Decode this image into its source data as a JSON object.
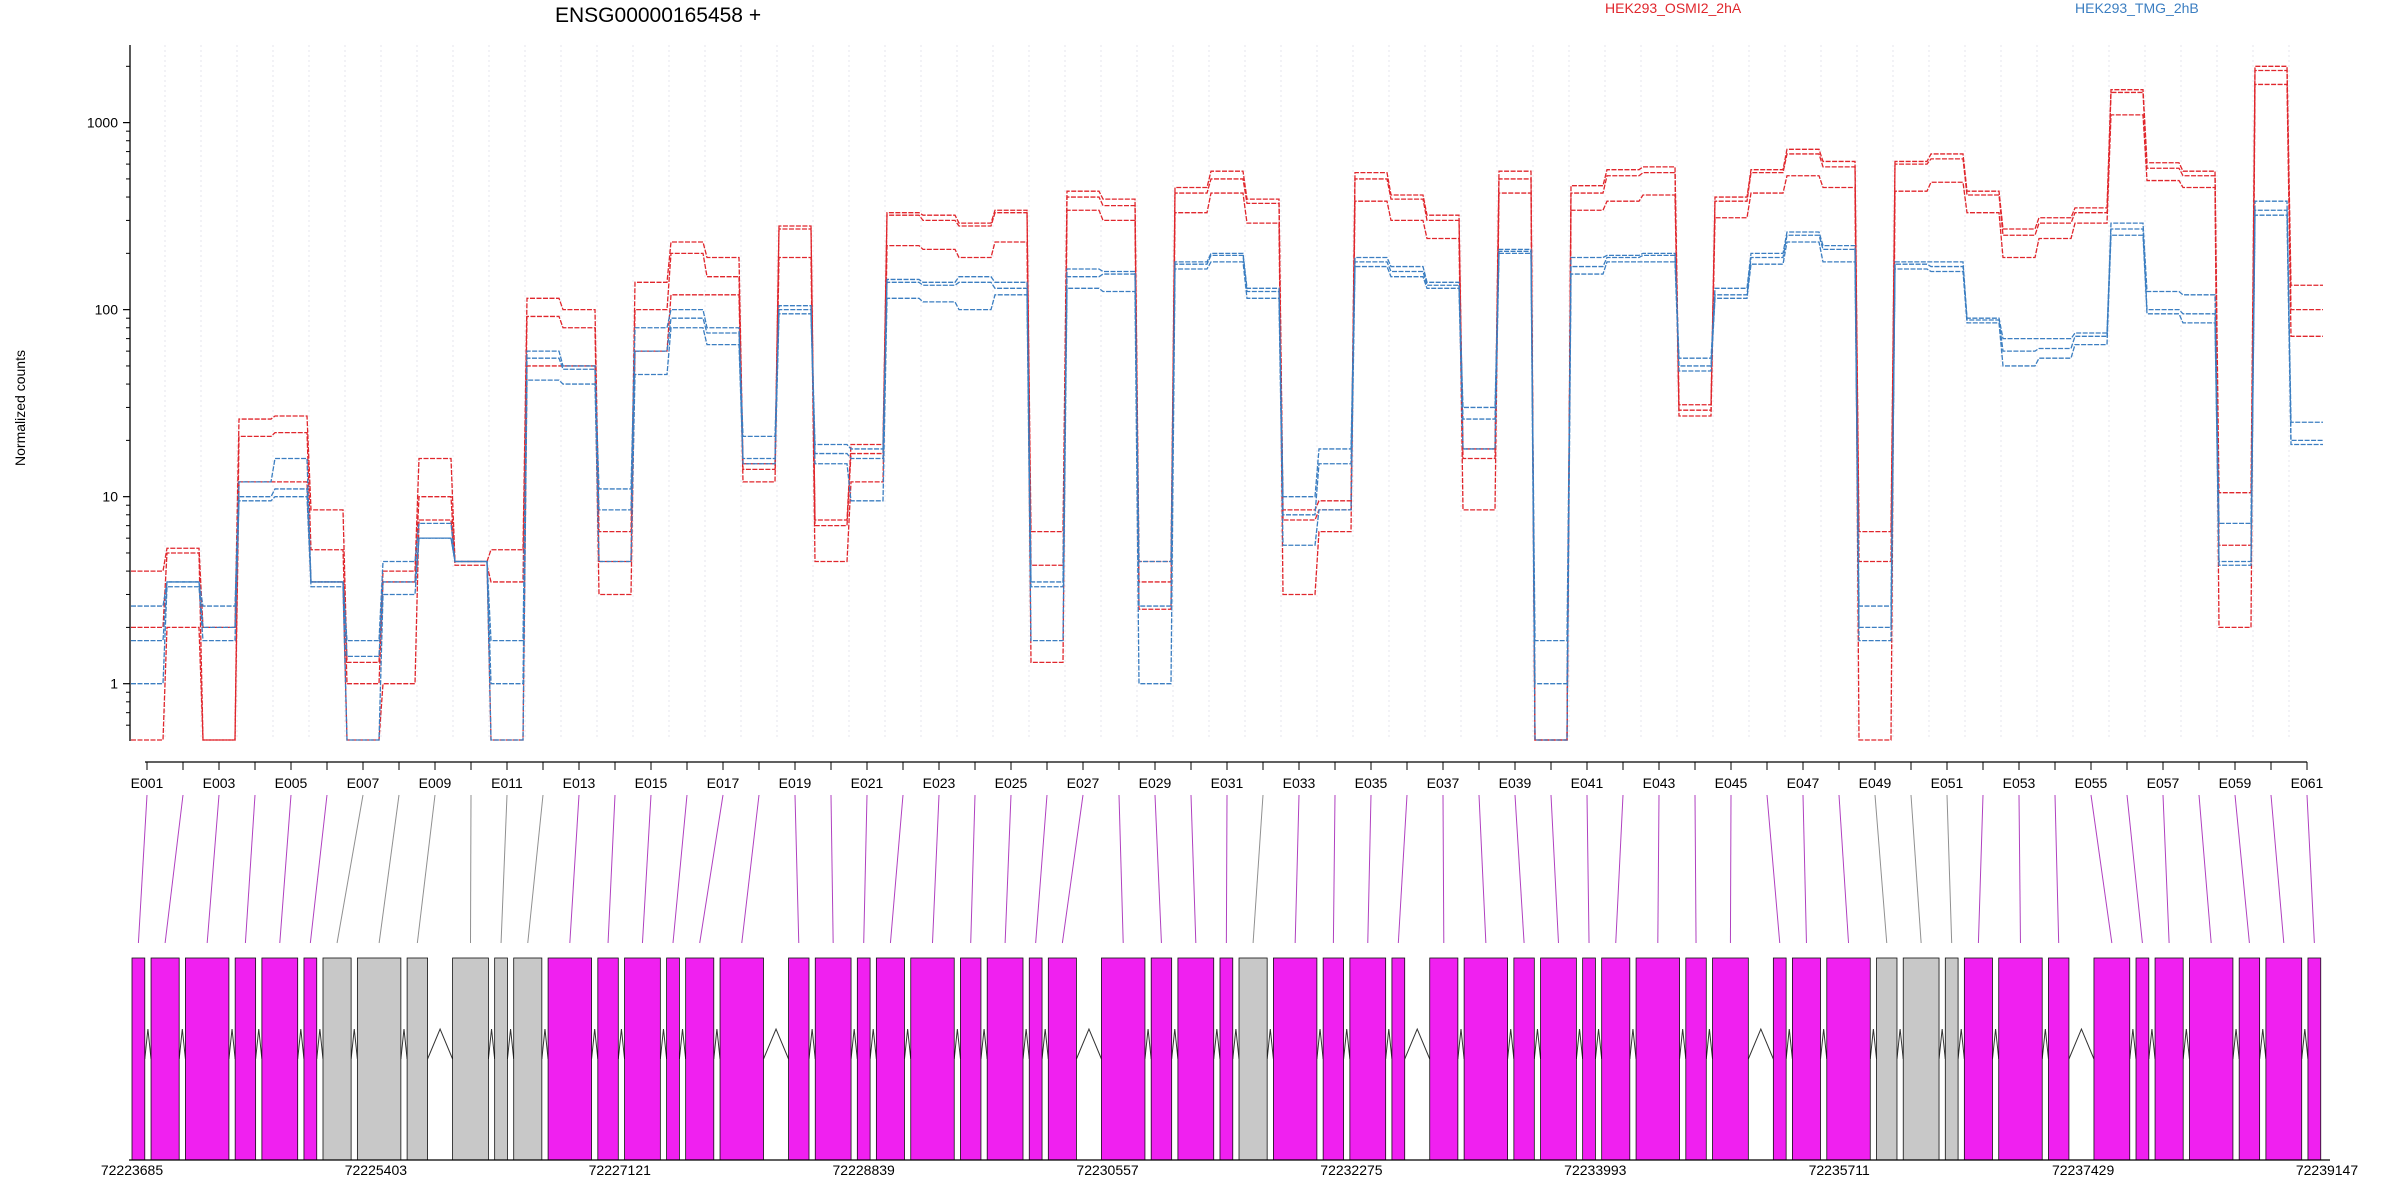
{
  "chart_data": {
    "type": "line",
    "title": "ENSG00000165458 +",
    "xlabel": "",
    "ylabel": "Normalized counts",
    "yscale": "log",
    "ylim": [
      0.5,
      2600
    ],
    "yticks": [
      1,
      10,
      100,
      1000
    ],
    "ytick_labels": [
      "1",
      "10",
      "100",
      "1000"
    ],
    "grid": "vertical lines between exon bins",
    "legend_placement": "top",
    "categories": [
      "E001",
      "E002",
      "E003",
      "E004",
      "E005",
      "E006",
      "E007",
      "E008",
      "E009",
      "E010",
      "E011",
      "E012",
      "E013",
      "E014",
      "E015",
      "E016",
      "E017",
      "E018",
      "E019",
      "E020",
      "E021",
      "E022",
      "E023",
      "E024",
      "E025",
      "E026",
      "E027",
      "E028",
      "E029",
      "E030",
      "E031",
      "E032",
      "E033",
      "E034",
      "E035",
      "E036",
      "E037",
      "E038",
      "E039",
      "E040",
      "E041",
      "E042",
      "E043",
      "E044",
      "E045",
      "E046",
      "E047",
      "E048",
      "E049",
      "E050",
      "E051",
      "E052",
      "E053",
      "E054",
      "E055",
      "E056",
      "E057",
      "E058",
      "E059",
      "E060",
      "E061"
    ],
    "tick_labels": [
      "E001",
      "E003",
      "E005",
      "E007",
      "E009",
      "E011",
      "E013",
      "E015",
      "E017",
      "E019",
      "E021",
      "E023",
      "E025",
      "E027",
      "E029",
      "E031",
      "E033",
      "E035",
      "E037",
      "E039",
      "E041",
      "E043",
      "E045",
      "E047",
      "E049",
      "E051",
      "E053",
      "E055",
      "E057",
      "E059",
      "E061"
    ],
    "series": [
      {
        "name": "HEK293_OSMI2_2hA",
        "group": "HEK293_OSMI2_2hA",
        "color": "#e0262c",
        "values": [
          4.0,
          5.3,
          2.0,
          26,
          27,
          8.5,
          1.3,
          4.0,
          16,
          4.5,
          5.2,
          115,
          100,
          6.5,
          140,
          230,
          190,
          15,
          280,
          7.5,
          19,
          330,
          320,
          290,
          340,
          6.5,
          430,
          390,
          4.5,
          450,
          550,
          390,
          8.5,
          9.5,
          540,
          410,
          320,
          18,
          550,
          0.5,
          460,
          560,
          580,
          31,
          400,
          560,
          720,
          620,
          6.5,
          620,
          680,
          430,
          270,
          310,
          350,
          1500,
          610,
          550,
          10.5,
          2000,
          135
        ]
      },
      {
        "name": "HEK293_OSMI2_2hA",
        "group": "HEK293_OSMI2_2hA",
        "color": "#e0262c",
        "values": [
          2.0,
          5.0,
          0.5,
          21,
          22,
          5.2,
          1.0,
          3.5,
          10,
          4.3,
          3.5,
          92,
          80,
          4.5,
          100,
          200,
          150,
          14,
          270,
          7.0,
          17,
          320,
          300,
          280,
          330,
          4.3,
          400,
          360,
          3.5,
          420,
          500,
          370,
          7.5,
          8.5,
          500,
          390,
          300,
          16,
          500,
          0.5,
          420,
          520,
          540,
          29,
          380,
          540,
          680,
          580,
          4.5,
          600,
          640,
          410,
          250,
          290,
          330,
          1450,
          570,
          520,
          5.5,
          1900,
          100
        ]
      },
      {
        "name": "HEK293_OSMI2_2hA",
        "group": "HEK293_OSMI2_2hA",
        "color": "#e0262c",
        "values": [
          0.5,
          2.0,
          0.5,
          12,
          12,
          3.5,
          0.5,
          1.0,
          7.5,
          4.5,
          0.5,
          50,
          50,
          3.0,
          60,
          120,
          120,
          12,
          190,
          4.5,
          12,
          220,
          210,
          190,
          230,
          1.3,
          340,
          300,
          2.5,
          330,
          420,
          290,
          3.0,
          6.5,
          380,
          300,
          240,
          8.5,
          420,
          0.5,
          340,
          380,
          410,
          27,
          310,
          420,
          520,
          450,
          0.5,
          430,
          480,
          330,
          190,
          240,
          290,
          1100,
          490,
          450,
          2.0,
          1600,
          72
        ]
      },
      {
        "name": "HEK293_TMG_2hB",
        "group": "HEK293_TMG_2hB",
        "color": "#3b7ec1",
        "values": [
          2.6,
          3.5,
          2.6,
          12,
          16,
          3.5,
          1.7,
          4.5,
          7.2,
          4.5,
          1.7,
          60,
          50,
          11,
          80,
          100,
          80,
          21,
          105,
          19,
          18,
          145,
          140,
          150,
          140,
          3.5,
          165,
          160,
          4.5,
          180,
          200,
          130,
          10,
          18,
          190,
          170,
          140,
          30,
          210,
          1.7,
          190,
          195,
          200,
          55,
          130,
          200,
          260,
          220,
          2.6,
          180,
          180,
          90,
          70,
          70,
          75,
          290,
          125,
          120,
          7.2,
          380,
          25
        ]
      },
      {
        "name": "HEK293_TMG_2hB",
        "group": "HEK293_TMG_2hB",
        "color": "#3b7ec1",
        "values": [
          1.7,
          3.5,
          2.0,
          10,
          11,
          3.5,
          1.4,
          3.5,
          6.0,
          4.5,
          1.0,
          55,
          48,
          8.5,
          60,
          90,
          75,
          16,
          100,
          17,
          16,
          140,
          135,
          140,
          130,
          3.3,
          150,
          155,
          2.6,
          175,
          195,
          125,
          8.0,
          15,
          180,
          160,
          135,
          26,
          205,
          1.0,
          170,
          190,
          195,
          50,
          120,
          190,
          250,
          210,
          2.0,
          175,
          170,
          88,
          60,
          62,
          72,
          270,
          100,
          95,
          4.5,
          340,
          20
        ]
      },
      {
        "name": "HEK293_TMG_2hB",
        "group": "HEK293_TMG_2hB",
        "color": "#3b7ec1",
        "values": [
          1.0,
          3.3,
          1.7,
          9.5,
          10,
          3.3,
          0.5,
          3.0,
          6.0,
          4.5,
          0.5,
          42,
          40,
          4.5,
          45,
          80,
          65,
          15,
          95,
          15,
          9.5,
          115,
          110,
          100,
          120,
          1.7,
          130,
          125,
          1.0,
          165,
          180,
          115,
          5.5,
          8.5,
          170,
          150,
          130,
          18,
          200,
          0.5,
          155,
          180,
          180,
          47,
          115,
          175,
          230,
          180,
          1.7,
          165,
          160,
          85,
          50,
          55,
          65,
          250,
          95,
          85,
          4.3,
          320,
          19
        ]
      }
    ]
  },
  "gene_model": {
    "exon_features": [
      "exon",
      "exon",
      "exon",
      "exon",
      "exon",
      "exon",
      "other",
      "other",
      "other",
      "other",
      "other",
      "other",
      "exon",
      "exon",
      "exon",
      "exon",
      "exon",
      "exon",
      "exon",
      "exon",
      "exon",
      "exon",
      "exon",
      "exon",
      "exon",
      "exon",
      "exon",
      "exon",
      "exon",
      "exon",
      "exon",
      "other",
      "exon",
      "exon",
      "exon",
      "exon",
      "exon",
      "exon",
      "exon",
      "exon",
      "exon",
      "exon",
      "exon",
      "exon",
      "exon",
      "exon",
      "exon",
      "exon",
      "other",
      "other",
      "other",
      "exon",
      "exon",
      "exon",
      "exon",
      "exon",
      "exon",
      "exon",
      "exon",
      "exon",
      "exon"
    ],
    "feature_colors": {
      "exon": "#f020f0",
      "other": "#c8c8c8"
    },
    "coordinate_labels": [
      "72223685",
      "72225403",
      "72227121",
      "72228839",
      "72230557",
      "72232275",
      "72233993",
      "72235711",
      "72237429",
      "72239147"
    ]
  }
}
